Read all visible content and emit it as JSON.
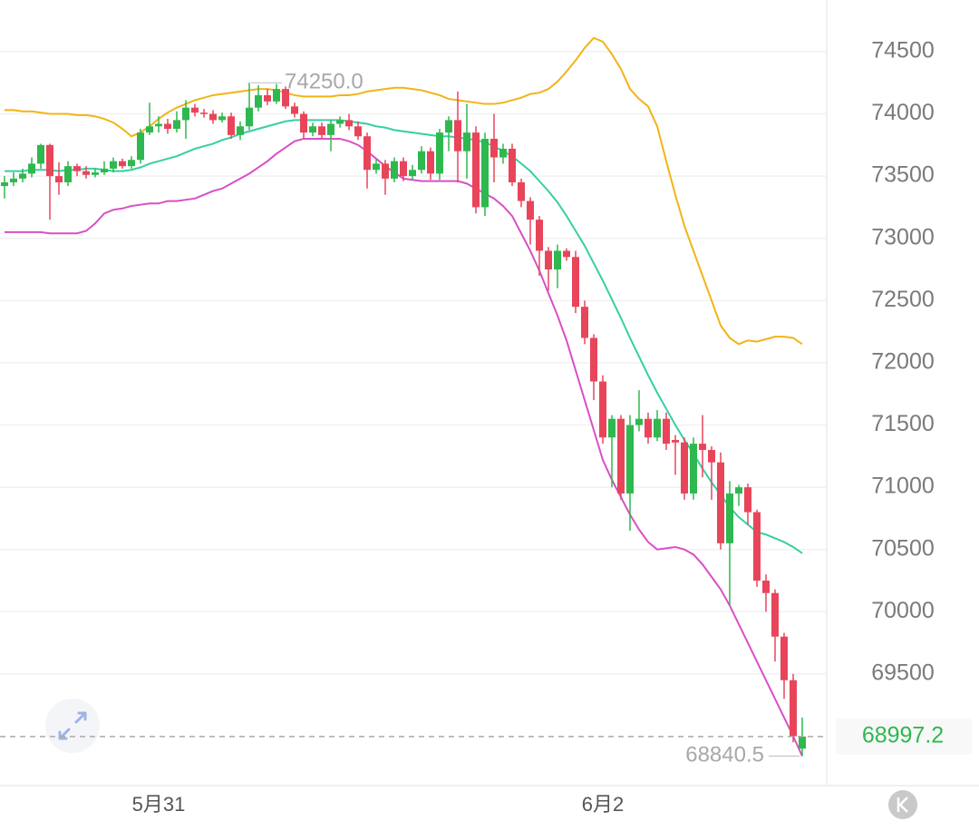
{
  "chart_data": {
    "type": "candlestick",
    "categories": [
      null,
      null,
      null,
      null,
      null,
      null,
      null,
      null,
      null,
      null,
      null,
      null,
      null,
      null,
      null,
      null,
      null,
      "5月31",
      null,
      null,
      null,
      null,
      null,
      null,
      null,
      null,
      null,
      null,
      null,
      null,
      null,
      null,
      null,
      null,
      null,
      null,
      null,
      null,
      null,
      null,
      null,
      null,
      null,
      null,
      null,
      null,
      null,
      null,
      null,
      null,
      null,
      null,
      null,
      null,
      null,
      null,
      null,
      null,
      null,
      null,
      null,
      null,
      null,
      null,
      null,
      null,
      "6月2",
      null,
      null,
      null,
      null,
      null,
      null,
      null,
      null,
      null,
      null,
      null,
      null,
      null,
      null,
      null,
      null,
      null,
      null,
      null,
      null,
      null,
      null
    ],
    "open": [
      73420,
      73450,
      73480,
      73520,
      73600,
      73750,
      73500,
      73450,
      73580,
      73540,
      73510,
      73530,
      73560,
      73620,
      73580,
      73630,
      73850,
      73900,
      73920,
      73880,
      73950,
      74050,
      74010,
      74000,
      73950,
      73980,
      73830,
      73900,
      74050,
      74150,
      74100,
      74200,
      74060,
      74000,
      73850,
      73900,
      73830,
      73920,
      73950,
      73900,
      73820,
      73550,
      73600,
      73480,
      73620,
      73500,
      73550,
      73700,
      73520,
      73850,
      73950,
      73700,
      73850,
      73250,
      73800,
      73650,
      73720,
      73450,
      73300,
      73150,
      72900,
      72750,
      72900,
      72850,
      72450,
      72200,
      71850,
      71400,
      71550,
      70950,
      71500,
      71550,
      71400,
      71550,
      71380,
      71360,
      70950,
      71350,
      71300,
      71200,
      70550,
      70950,
      71000,
      70800,
      70250,
      70150,
      69800,
      69450,
      68900
    ],
    "high": [
      73500,
      73530,
      73560,
      73650,
      73760,
      73760,
      73610,
      73620,
      73600,
      73580,
      73560,
      73620,
      73650,
      73640,
      73660,
      73880,
      74090,
      73980,
      73960,
      74020,
      74110,
      74080,
      74040,
      74030,
      74010,
      74010,
      73940,
      74250,
      74230,
      74200,
      74240,
      74220,
      74090,
      74020,
      73930,
      73930,
      73950,
      73980,
      74000,
      73940,
      73850,
      73640,
      73630,
      73650,
      73650,
      73590,
      73740,
      73730,
      73880,
      73980,
      74180,
      74080,
      73900,
      73850,
      74000,
      73760,
      73760,
      73480,
      73330,
      73180,
      72930,
      72950,
      72920,
      72900,
      72500,
      72230,
      71900,
      71580,
      71580,
      71580,
      71780,
      71600,
      71620,
      71600,
      71420,
      71400,
      71400,
      71580,
      71330,
      71280,
      71050,
      71020,
      71030,
      70820,
      70300,
      70180,
      69830,
      69500,
      69150
    ],
    "low": [
      73320,
      73420,
      73450,
      73490,
      73560,
      73150,
      73350,
      73420,
      73500,
      73480,
      73490,
      73510,
      73530,
      73560,
      73560,
      73600,
      73830,
      73850,
      73840,
      73850,
      73800,
      73980,
      73970,
      73920,
      73930,
      73800,
      73790,
      73870,
      74020,
      74070,
      74080,
      74040,
      73970,
      73800,
      73820,
      73800,
      73700,
      73890,
      73870,
      73790,
      73400,
      73520,
      73350,
      73450,
      73460,
      73470,
      73520,
      73470,
      73470,
      73700,
      73450,
      73480,
      73200,
      73180,
      73450,
      73600,
      73420,
      73250,
      72950,
      72700,
      72580,
      72600,
      72820,
      72400,
      72150,
      71700,
      71350,
      71000,
      70900,
      70650,
      71450,
      71350,
      71370,
      71300,
      71100,
      70900,
      70900,
      71080,
      70900,
      70500,
      70050,
      70850,
      70700,
      70200,
      70000,
      69600,
      69300,
      68950,
      68840.5
    ],
    "close": [
      73450,
      73480,
      73520,
      73600,
      73750,
      73500,
      73450,
      73580,
      73540,
      73510,
      73530,
      73560,
      73620,
      73580,
      73630,
      73850,
      73900,
      73920,
      73880,
      73950,
      74050,
      74010,
      74000,
      73950,
      73980,
      73830,
      73900,
      74050,
      74150,
      74100,
      74200,
      74060,
      74000,
      73850,
      73900,
      73830,
      73920,
      73950,
      73900,
      73820,
      73550,
      73600,
      73480,
      73620,
      73500,
      73550,
      73700,
      73520,
      73850,
      73950,
      73700,
      73850,
      73250,
      73800,
      73650,
      73720,
      73450,
      73300,
      73150,
      72900,
      72750,
      72900,
      72850,
      72450,
      72200,
      71850,
      71400,
      71550,
      70950,
      71500,
      71550,
      71400,
      71550,
      71350,
      71360,
      70950,
      71350,
      71300,
      71200,
      70550,
      70950,
      71000,
      70800,
      70250,
      70150,
      69800,
      69450,
      69000,
      68997.2
    ],
    "up_color": "#2fb84f",
    "down_color": "#e8455a",
    "bands": [
      {
        "color": "#f2b416",
        "values": [
          74030,
          74030,
          74020,
          74020,
          74010,
          74000,
          74000,
          74000,
          73990,
          73990,
          73980,
          73960,
          73930,
          73880,
          73820,
          73850,
          73900,
          73960,
          74010,
          74050,
          74080,
          74110,
          74130,
          74150,
          74160,
          74170,
          74180,
          74190,
          74200,
          74200,
          74190,
          74170,
          74150,
          74140,
          74140,
          74140,
          74140,
          74150,
          74150,
          74160,
          74180,
          74190,
          74200,
          74210,
          74210,
          74200,
          74190,
          74170,
          74150,
          74120,
          74110,
          74100,
          74090,
          74080,
          74080,
          74090,
          74110,
          74130,
          74160,
          74170,
          74200,
          74260,
          74340,
          74430,
          74530,
          74610,
          74580,
          74480,
          74360,
          74200,
          74120,
          74060,
          73900,
          73620,
          73350,
          73100,
          72900,
          72700,
          72500,
          72300,
          72200,
          72150,
          72180,
          72170,
          72190,
          72210,
          72210,
          72200,
          72150
        ]
      },
      {
        "color": "#35cfa4",
        "values": [
          73540,
          73540,
          73540,
          73550,
          73550,
          73550,
          73540,
          73550,
          73550,
          73560,
          73560,
          73550,
          73540,
          73540,
          73550,
          73570,
          73600,
          73620,
          73640,
          73660,
          73690,
          73720,
          73740,
          73760,
          73790,
          73810,
          73840,
          73860,
          73880,
          73900,
          73920,
          73940,
          73950,
          73950,
          73950,
          73950,
          73950,
          73950,
          73940,
          73930,
          73920,
          73900,
          73890,
          73870,
          73860,
          73850,
          73840,
          73830,
          73820,
          73820,
          73810,
          73800,
          73790,
          73770,
          73740,
          73700,
          73660,
          73600,
          73540,
          73460,
          73380,
          73290,
          73180,
          73060,
          72940,
          72800,
          72660,
          72510,
          72360,
          72200,
          72050,
          71900,
          71760,
          71630,
          71500,
          71380,
          71270,
          71150,
          71040,
          70940,
          70840,
          70760,
          70700,
          70640,
          70620,
          70590,
          70560,
          70520,
          70470
        ]
      },
      {
        "color": "#d94fc6",
        "values": [
          73050,
          73050,
          73050,
          73050,
          73050,
          73040,
          73040,
          73040,
          73040,
          73060,
          73120,
          73200,
          73230,
          73240,
          73260,
          73270,
          73280,
          73280,
          73300,
          73300,
          73310,
          73320,
          73350,
          73380,
          73400,
          73440,
          73480,
          73520,
          73570,
          73620,
          73680,
          73730,
          73780,
          73800,
          73800,
          73800,
          73800,
          73800,
          73780,
          73750,
          73700,
          73640,
          73580,
          73530,
          73480,
          73470,
          73460,
          73460,
          73460,
          73460,
          73460,
          73440,
          73400,
          73360,
          73320,
          73260,
          73180,
          73040,
          72900,
          72740,
          72560,
          72380,
          72180,
          71940,
          71700,
          71460,
          71220,
          71060,
          70920,
          70780,
          70660,
          70560,
          70500,
          70510,
          70520,
          70500,
          70460,
          70380,
          70280,
          70180,
          70050,
          69900,
          69750,
          69600,
          69450,
          69300,
          69150,
          69000,
          68840
        ]
      }
    ],
    "ylim": [
      68610,
      74915
    ],
    "yticks": [
      69500,
      70000,
      70500,
      71000,
      71500,
      72000,
      72500,
      73000,
      73500,
      74000,
      74500
    ],
    "grid": true,
    "max_label": {
      "value": 74250,
      "label": "74250.0"
    },
    "min_label": {
      "value": 68840.5,
      "label": "68840.5"
    },
    "last_price": {
      "value": 68997.2,
      "label": "68997.2",
      "color": "#2fb84f"
    }
  }
}
